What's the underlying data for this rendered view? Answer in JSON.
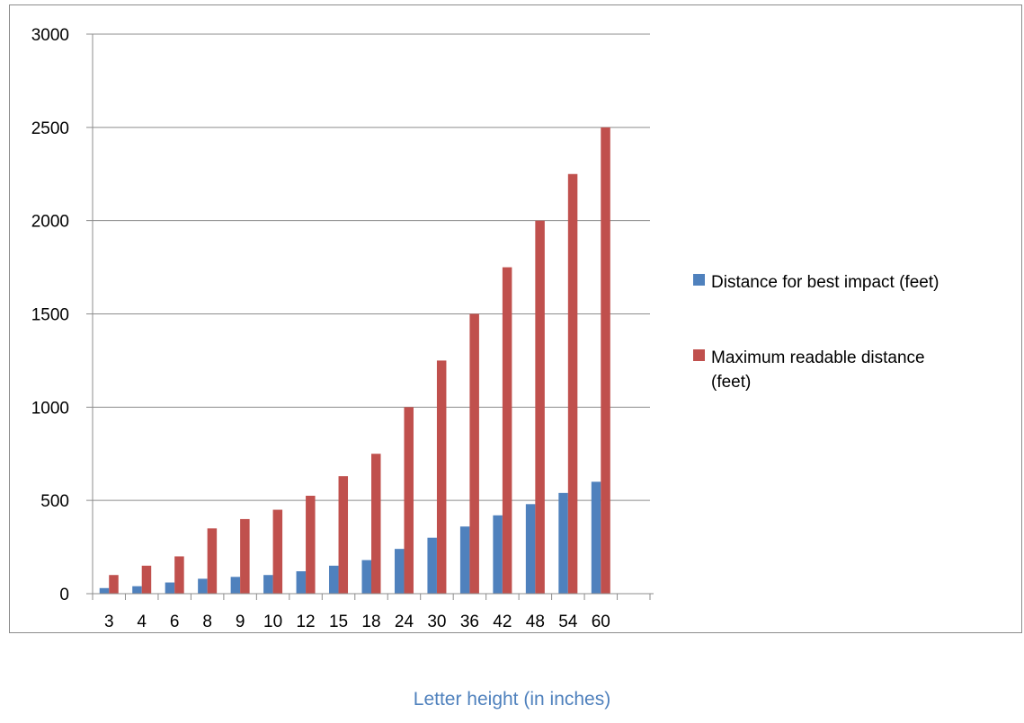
{
  "chart_data": {
    "type": "bar",
    "title": "",
    "xlabel": "Letter height (in inches)",
    "ylabel": "",
    "ylim": [
      0,
      3000
    ],
    "yticks": [
      0,
      500,
      1000,
      1500,
      2000,
      2500,
      3000
    ],
    "grid": true,
    "legend_position": "right",
    "categories": [
      "3",
      "4",
      "6",
      "8",
      "9",
      "10",
      "12",
      "15",
      "18",
      "24",
      "30",
      "36",
      "42",
      "48",
      "54",
      "60"
    ],
    "series": [
      {
        "name": "Distance for best impact (feet)",
        "color": "#4f81bd",
        "values": [
          30,
          40,
          60,
          80,
          90,
          100,
          120,
          150,
          180,
          240,
          300,
          360,
          420,
          480,
          540,
          600
        ]
      },
      {
        "name": "Maximum readable distance (feet)",
        "color": "#c0504d",
        "values": [
          100,
          150,
          200,
          350,
          400,
          450,
          525,
          630,
          750,
          1000,
          1250,
          1500,
          1750,
          2000,
          2250,
          2500
        ]
      }
    ]
  }
}
